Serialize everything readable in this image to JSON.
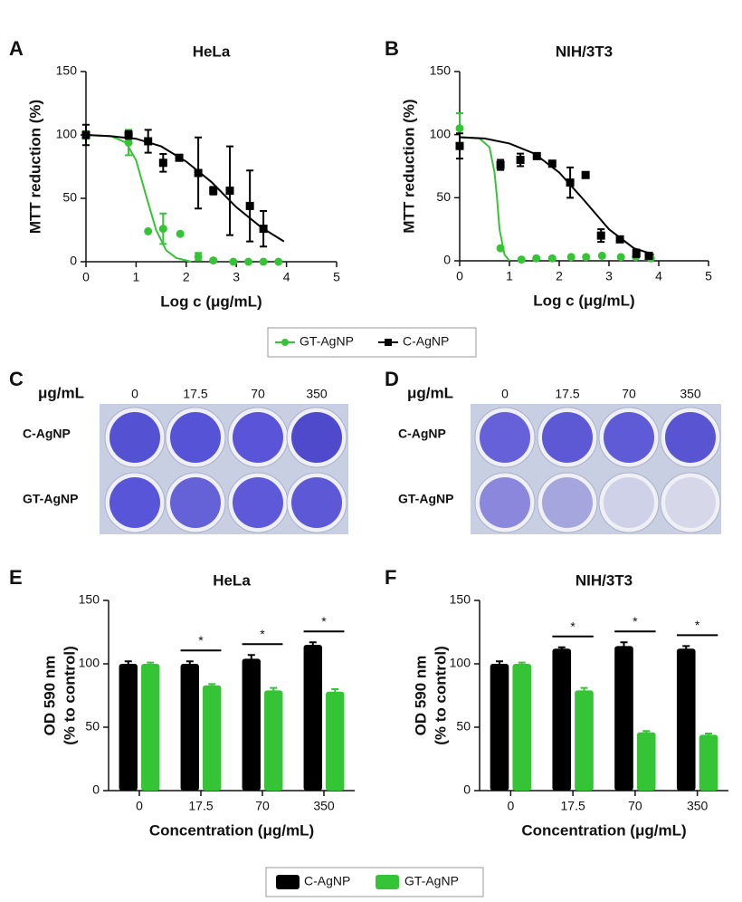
{
  "chart_data": [
    {
      "type": "scatter",
      "panel": "A",
      "title": "HeLa",
      "xlabel": "Log c (μg/mL)",
      "ylabel": "MTT reduction (%)",
      "xlim": [
        0,
        5
      ],
      "xticks": [
        0,
        1,
        2,
        3,
        4,
        5
      ],
      "ylim": [
        0,
        150
      ],
      "yticks": [
        0,
        50,
        100,
        150
      ],
      "series": [
        {
          "name": "GT-AgNP",
          "color": "#35c435",
          "marker": "circle",
          "x": [
            0,
            0.85,
            1.24,
            1.54,
            1.88,
            2.24,
            2.54,
            2.94,
            3.24,
            3.54,
            3.84
          ],
          "values": [
            100,
            94,
            24,
            26,
            22,
            4,
            1,
            0,
            0,
            0,
            0
          ],
          "errors": [
            3,
            10,
            0,
            12,
            0,
            3,
            0,
            0,
            0,
            0,
            0
          ],
          "fit": {
            "x": [
              0,
              0.5,
              0.8,
              1.0,
              1.2,
              1.4,
              1.6,
              1.8,
              2.1
            ],
            "values": [
              100,
              99,
              94,
              80,
              52,
              25,
              9,
              3,
              0
            ]
          }
        },
        {
          "name": "C-AgNP",
          "color": "#000000",
          "marker": "square",
          "x": [
            0,
            0.85,
            1.24,
            1.54,
            1.86,
            2.24,
            2.54,
            2.87,
            3.27,
            3.54
          ],
          "values": [
            100,
            100,
            95,
            78,
            82,
            70,
            56,
            56,
            44,
            26
          ],
          "errors": [
            8,
            3,
            9,
            7,
            0,
            28,
            3,
            35,
            28,
            14
          ],
          "fit": {
            "x": [
              0,
              0.5,
              1,
              1.5,
              2,
              2.5,
              3,
              3.5,
              3.95
            ],
            "values": [
              100,
              99,
              97,
              91,
              79,
              63,
              43,
              27,
              16
            ]
          }
        }
      ]
    },
    {
      "type": "scatter",
      "panel": "B",
      "title": "NIH/3T3",
      "xlabel": "Log c (μg/mL)",
      "ylabel": "MTT reduction (%)",
      "xlim": [
        0,
        5
      ],
      "xticks": [
        0,
        1,
        2,
        3,
        4,
        5
      ],
      "ylim": [
        0,
        150
      ],
      "yticks": [
        0,
        50,
        100,
        150
      ],
      "series": [
        {
          "name": "GT-AgNP",
          "color": "#35c435",
          "marker": "circle",
          "x": [
            0,
            0.82,
            1.24,
            1.54,
            1.86,
            2.24,
            2.54,
            2.86,
            3.24,
            3.54,
            3.84
          ],
          "values": [
            105,
            10,
            1,
            2,
            2,
            3,
            3,
            4,
            3,
            3,
            2
          ],
          "errors": [
            12,
            0,
            0,
            0,
            0,
            0,
            0,
            0,
            0,
            0,
            0
          ],
          "fit": {
            "x": [
              0,
              0.4,
              0.6,
              0.7,
              0.75,
              0.8,
              0.9,
              1.0
            ],
            "values": [
              98,
              97,
              90,
              70,
              50,
              25,
              5,
              0
            ]
          }
        },
        {
          "name": "C-AgNP",
          "color": "#000000",
          "marker": "square",
          "x": [
            0,
            0.82,
            1.22,
            1.55,
            1.86,
            2.22,
            2.53,
            2.84,
            3.22,
            3.55,
            3.8
          ],
          "values": [
            91,
            76,
            80,
            83,
            77,
            62,
            68,
            20,
            17,
            6,
            4
          ],
          "errors": [
            10,
            4,
            5,
            0,
            0,
            12,
            0,
            5,
            0,
            3,
            0
          ],
          "fit": {
            "x": [
              0,
              0.5,
              1,
              1.5,
              2,
              2.5,
              3,
              3.5,
              3.9
            ],
            "values": [
              98,
              97,
              93,
              85,
              70,
              48,
              25,
              10,
              5
            ]
          }
        }
      ]
    },
    {
      "type": "bar",
      "panel": "E",
      "title": "HeLa",
      "xlabel": "Concentration (μg/mL)",
      "ylabel": [
        "OD 590 nm",
        "(% to control)"
      ],
      "categories": [
        "0",
        "17.5",
        "70",
        "350"
      ],
      "ylim": [
        0,
        150
      ],
      "yticks": [
        0,
        50,
        100,
        150
      ],
      "significance": [
        null,
        "*",
        "*",
        "*"
      ],
      "series": [
        {
          "name": "C-AgNP",
          "color": "#000000",
          "values": [
            100,
            100,
            104,
            115
          ],
          "errors": [
            2,
            2,
            3,
            2
          ]
        },
        {
          "name": "GT-AgNP",
          "color": "#35c435",
          "values": [
            100,
            83,
            79,
            78
          ],
          "errors": [
            1,
            1,
            2,
            2
          ]
        }
      ]
    },
    {
      "type": "bar",
      "panel": "F",
      "title": "NIH/3T3",
      "xlabel": "Concentration (μg/mL)",
      "ylabel": [
        "OD 590 nm",
        "(% to control)"
      ],
      "categories": [
        "0",
        "17.5",
        "70",
        "350"
      ],
      "ylim": [
        0,
        150
      ],
      "yticks": [
        0,
        50,
        100,
        150
      ],
      "significance": [
        null,
        "*",
        "*",
        "*"
      ],
      "series": [
        {
          "name": "C-AgNP",
          "color": "#000000",
          "values": [
            100,
            112,
            114,
            112
          ],
          "errors": [
            2,
            1,
            3,
            2
          ]
        },
        {
          "name": "GT-AgNP",
          "color": "#35c435",
          "values": [
            100,
            79,
            46,
            44
          ],
          "errors": [
            1,
            2,
            1,
            1
          ]
        }
      ]
    }
  ],
  "plates": [
    {
      "panel": "C",
      "unit": "μg/mL",
      "concentrations": [
        "0",
        "17.5",
        "70",
        "350"
      ],
      "rows": [
        "C-AgNP",
        "GT-AgNP"
      ]
    },
    {
      "panel": "D",
      "unit": "μg/mL",
      "concentrations": [
        "0",
        "17.5",
        "70",
        "350"
      ],
      "rows": [
        "C-AgNP",
        "GT-AgNP"
      ]
    }
  ]
}
